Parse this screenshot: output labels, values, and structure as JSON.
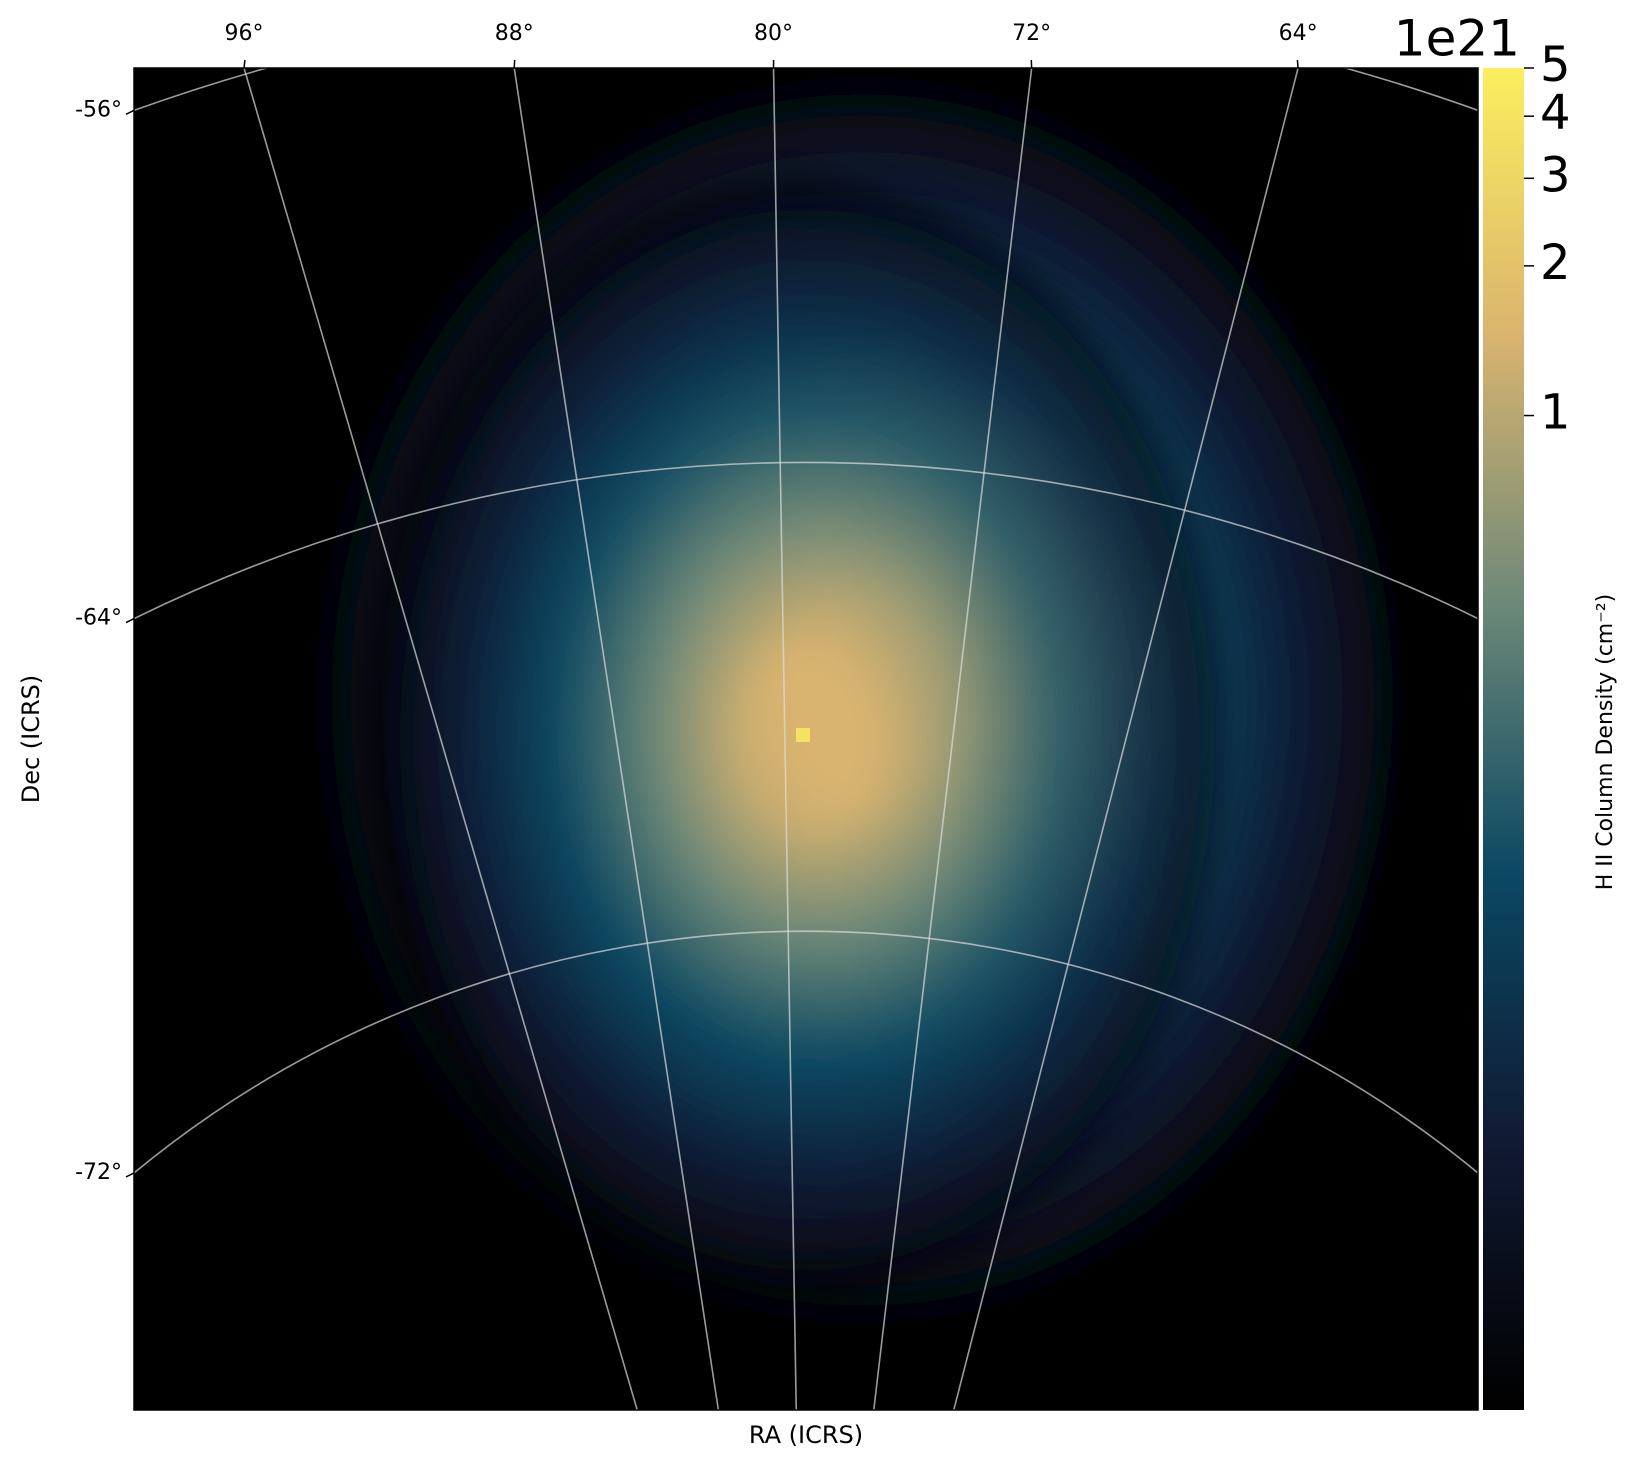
{
  "chart_data": {
    "type": "image",
    "xlabel": "RA (ICRS)",
    "ylabel": "Dec (ICRS)",
    "xticks": [
      {
        "value": 96,
        "label": "96°"
      },
      {
        "value": 88,
        "label": "88°"
      },
      {
        "value": 80,
        "label": "80°"
      },
      {
        "value": 72,
        "label": "72°"
      },
      {
        "value": 64,
        "label": "64°"
      }
    ],
    "yticks": [
      {
        "value": -56,
        "label": "-56°"
      },
      {
        "value": -64,
        "label": "-64°"
      },
      {
        "value": -72,
        "label": "-72°"
      }
    ],
    "grid": true,
    "colorbar": {
      "label": "H II Column Density (cm⁻²)",
      "offset_label": "1e21",
      "log": true,
      "clim": [
        0.01,
        5
      ],
      "ticks": [
        1,
        2,
        3,
        4,
        5
      ],
      "colors": [
        "#000000",
        "#101a33",
        "#0b4862",
        "#6c8878",
        "#d9b46f",
        "#fcee5e"
      ]
    }
  }
}
